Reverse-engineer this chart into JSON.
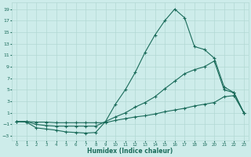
{
  "xlabel": "Humidex (Indice chaleur)",
  "bg_color": "#cdecea",
  "grid_color": "#b2d8d4",
  "line_color": "#1a6b5a",
  "xlim": [
    -0.5,
    23.5
  ],
  "ylim": [
    -3.8,
    20.2
  ],
  "xticks": [
    0,
    1,
    2,
    3,
    4,
    5,
    6,
    7,
    8,
    9,
    10,
    11,
    12,
    13,
    14,
    15,
    16,
    17,
    18,
    19,
    20,
    21,
    22,
    23
  ],
  "yticks": [
    -3,
    -1,
    1,
    3,
    5,
    7,
    9,
    11,
    13,
    15,
    17,
    19
  ],
  "line1_x": [
    0,
    1,
    2,
    3,
    4,
    5,
    6,
    7,
    8,
    9,
    10,
    11,
    12,
    13,
    14,
    15,
    16,
    17,
    18,
    19,
    20,
    21,
    22,
    23
  ],
  "line1_y": [
    -0.5,
    -0.6,
    -1.6,
    -1.8,
    -2.0,
    -2.3,
    -2.4,
    -2.5,
    -2.4,
    -0.5,
    2.5,
    5.0,
    8.0,
    11.5,
    14.5,
    17.0,
    19.0,
    17.5,
    12.5,
    12.0,
    10.5,
    5.5,
    4.5,
    1.0
  ],
  "line2_x": [
    0,
    1,
    2,
    3,
    4,
    5,
    6,
    7,
    8,
    9,
    10,
    11,
    12,
    13,
    14,
    15,
    16,
    17,
    18,
    19,
    20,
    21,
    22,
    23
  ],
  "line2_y": [
    -0.5,
    -0.5,
    -1.0,
    -1.2,
    -1.3,
    -1.3,
    -1.3,
    -1.3,
    -1.3,
    -0.5,
    0.3,
    1.0,
    2.0,
    2.8,
    3.8,
    5.2,
    6.5,
    7.8,
    8.5,
    9.0,
    10.0,
    5.0,
    4.5,
    1.0
  ],
  "line3_x": [
    0,
    1,
    2,
    3,
    4,
    5,
    6,
    7,
    8,
    9,
    10,
    11,
    12,
    13,
    14,
    15,
    16,
    17,
    18,
    19,
    20,
    21,
    22,
    23
  ],
  "line3_y": [
    -0.5,
    -0.5,
    -0.6,
    -0.6,
    -0.7,
    -0.7,
    -0.7,
    -0.7,
    -0.7,
    -0.7,
    -0.3,
    0.0,
    0.3,
    0.5,
    0.8,
    1.2,
    1.5,
    1.8,
    2.2,
    2.5,
    2.8,
    3.8,
    4.0,
    1.0
  ]
}
